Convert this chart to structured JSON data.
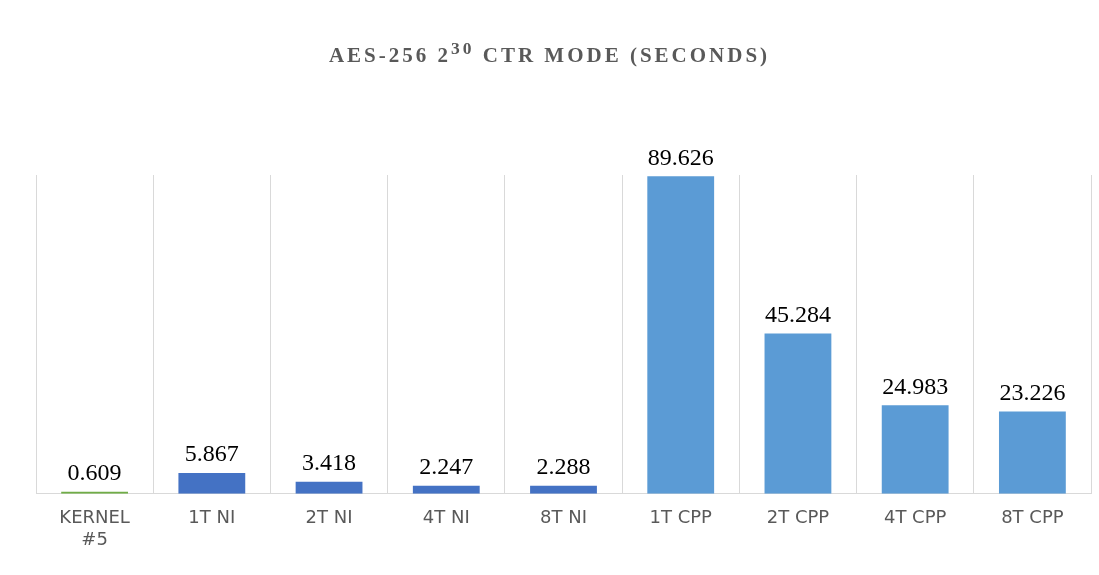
{
  "chart_data": {
    "type": "bar",
    "title": "AES-256 2$^{30}$ CTR MODE (SECONDS)",
    "categories": [
      "KERNEL #5",
      "1T NI",
      "2T NI",
      "4T NI",
      "8T NI",
      "1T CPP",
      "2T CPP",
      "4T CPP",
      "8T CPP"
    ],
    "values": [
      0.609,
      5.867,
      3.418,
      2.247,
      2.288,
      89.626,
      45.284,
      24.983,
      23.226
    ],
    "colors": [
      "#70ad47",
      "#4472c4",
      "#4472c4",
      "#4472c4",
      "#4472c4",
      "#5b9bd5",
      "#5b9bd5",
      "#5b9bd5",
      "#5b9bd5"
    ],
    "data_labels": true,
    "grid": "x",
    "legend": false,
    "tick_labels": "x"
  }
}
